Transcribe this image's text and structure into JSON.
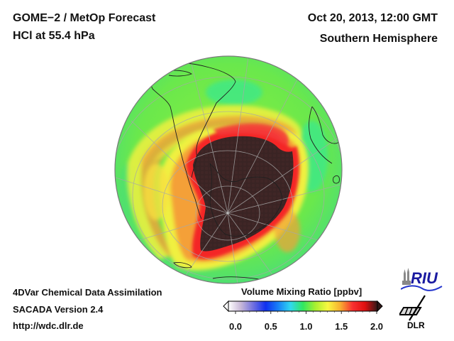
{
  "header": {
    "title_line1": "GOME−2 / MetOp Forecast",
    "title_line2": "HCl at 55.4 hPa",
    "datetime": "Oct 20, 2013, 12:00 GMT",
    "region": "Southern Hemisphere"
  },
  "footer": {
    "line1": "4DVar Chemical Data Assimilation",
    "line2": "SACADA Version 2.4",
    "line3": "http://wdc.dlr.de"
  },
  "colorbar": {
    "title": "Volume Mixing Ratio [ppbv]",
    "min": 0.0,
    "max": 2.0,
    "ticks": [
      "0.0",
      "0.5",
      "1.0",
      "1.5",
      "2.0"
    ],
    "tick_values": [
      0.0,
      0.5,
      1.0,
      1.5,
      2.0
    ],
    "colors": [
      "#ffffff",
      "#c8b8d8",
      "#7070e0",
      "#1030f0",
      "#1880f8",
      "#30d8f0",
      "#30e860",
      "#a8f030",
      "#f8f840",
      "#f8b030",
      "#f83030",
      "#e01010",
      "#301818"
    ],
    "extend": "both"
  },
  "map": {
    "projection": "orthographic",
    "field_colors": {
      "background": "#66e34a",
      "green_light": "#8ef048",
      "cyan_green": "#3ee88a",
      "yellow": "#f0f040",
      "orange": "#f4a038",
      "red": "#f42828",
      "dark_core": "#3a2424"
    }
  },
  "logos": {
    "riu": "RIU",
    "dlr": "DLR"
  }
}
